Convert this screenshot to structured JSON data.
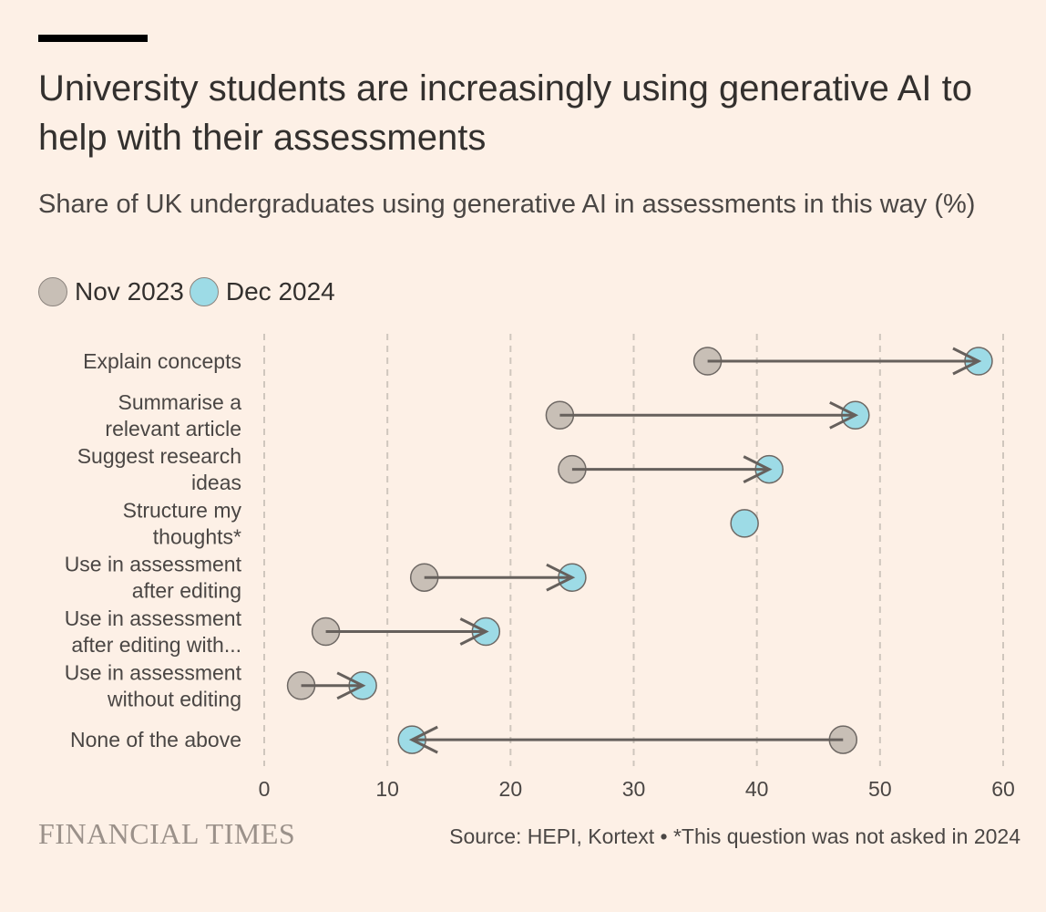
{
  "title": "University students are increasingly using generative AI to help with their assessments",
  "subtitle": "Share of UK undergraduates using generative AI in assessments in this way (%)",
  "legend": {
    "nov": "Nov 2023",
    "dec": "Dec 2024"
  },
  "footer": {
    "logo": "FINANCIAL TIMES",
    "source": "Source: HEPI, Kortext • *This question was not asked in 2024"
  },
  "colors": {
    "nov": "#c8bfb6",
    "dec": "#9ddbe6",
    "arrow": "#66605c",
    "grid": "#cfc6bd",
    "background": "#fdf0e6"
  },
  "chart_data": {
    "type": "dumbbell",
    "title": "University students are increasingly using generative AI to help with their assessments",
    "subtitle": "Share of UK undergraduates using generative AI in assessments in this way (%)",
    "xlim": [
      0,
      60
    ],
    "xticks": [
      0,
      10,
      20,
      30,
      40,
      50,
      60
    ],
    "grid": true,
    "legend_position": "top-left",
    "series": [
      {
        "name": "Nov 2023",
        "values": [
          36,
          24,
          25,
          null,
          13,
          5,
          3,
          47
        ]
      },
      {
        "name": "Dec 2024",
        "values": [
          58,
          48,
          41,
          39,
          25,
          18,
          8,
          12
        ]
      }
    ],
    "categories": [
      [
        "Explain concepts"
      ],
      [
        "Summarise a",
        "relevant article"
      ],
      [
        "Suggest research",
        "ideas"
      ],
      [
        "Structure my",
        "thoughts*"
      ],
      [
        "Use in assessment",
        "after editing"
      ],
      [
        "Use in assessment",
        "after editing with..."
      ],
      [
        "Use in assessment",
        "without editing"
      ],
      [
        "None of the above"
      ]
    ]
  }
}
